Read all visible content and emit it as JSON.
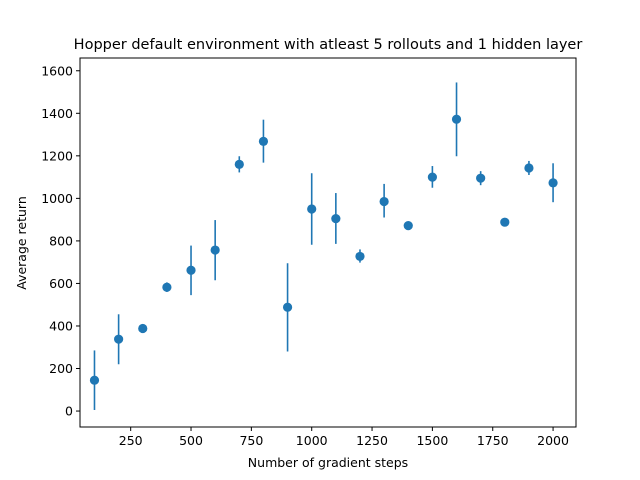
{
  "chart_data": {
    "type": "scatter",
    "title": "Hopper default environment with atleast 5 rollouts and 1 hidden layer",
    "xlabel": "Number of gradient steps",
    "ylabel": "Average return",
    "xlim": [
      40,
      2095
    ],
    "ylim": [
      -75,
      1660
    ],
    "xticks": [
      250,
      500,
      750,
      1000,
      1250,
      1500,
      1750,
      2000
    ],
    "yticks": [
      0,
      200,
      400,
      600,
      800,
      1000,
      1200,
      1400,
      1600
    ],
    "grid": false,
    "color": "#1f77b4",
    "points": [
      {
        "x": 100,
        "y": 145,
        "err": [
          5,
          285
        ]
      },
      {
        "x": 200,
        "y": 338,
        "err": [
          220,
          455
        ]
      },
      {
        "x": 300,
        "y": 388,
        "err": [
          382,
          394
        ]
      },
      {
        "x": 400,
        "y": 582,
        "err": [
          560,
          605
        ]
      },
      {
        "x": 500,
        "y": 662,
        "err": [
          545,
          778
        ]
      },
      {
        "x": 600,
        "y": 757,
        "err": [
          615,
          898
        ]
      },
      {
        "x": 700,
        "y": 1160,
        "err": [
          1122,
          1198
        ]
      },
      {
        "x": 800,
        "y": 1268,
        "err": [
          1168,
          1370
        ]
      },
      {
        "x": 900,
        "y": 488,
        "err": [
          280,
          695
        ]
      },
      {
        "x": 1000,
        "y": 950,
        "err": [
          782,
          1118
        ]
      },
      {
        "x": 1100,
        "y": 905,
        "err": [
          786,
          1025
        ]
      },
      {
        "x": 1200,
        "y": 727,
        "err": [
          698,
          760
        ]
      },
      {
        "x": 1300,
        "y": 985,
        "err": [
          910,
          1068
        ]
      },
      {
        "x": 1400,
        "y": 872,
        "err": [
          864,
          880
        ]
      },
      {
        "x": 1500,
        "y": 1100,
        "err": [
          1050,
          1152
        ]
      },
      {
        "x": 1600,
        "y": 1372,
        "err": [
          1198,
          1545
        ]
      },
      {
        "x": 1700,
        "y": 1095,
        "err": [
          1062,
          1128
        ]
      },
      {
        "x": 1800,
        "y": 888,
        "err": [
          880,
          896
        ]
      },
      {
        "x": 1900,
        "y": 1143,
        "err": [
          1110,
          1176
        ]
      },
      {
        "x": 2000,
        "y": 1073,
        "err": [
          982,
          1165
        ]
      }
    ]
  }
}
